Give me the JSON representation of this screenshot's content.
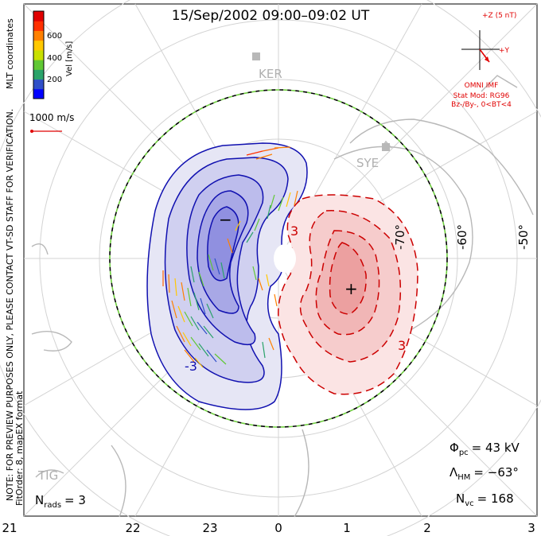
{
  "title": "15/Sep/2002 09:00–09:02 UT",
  "coordinates_label": "MLT coordinates",
  "colorbar": {
    "unit_label": "Vel [m/s]",
    "ticks": [
      "600",
      "400",
      "200"
    ],
    "colors": [
      "#0000ff",
      "#3050c8",
      "#2aa36a",
      "#60c834",
      "#c8e000",
      "#ffc800",
      "#ff8000",
      "#ff3000",
      "#e00000"
    ]
  },
  "reference_vector": "1000 m/s",
  "imf": {
    "z_label": "+Z (5 nT)",
    "y_label": "+Y",
    "source": "OMNI IMF",
    "model_line1": "Stat Mod: RG96",
    "model_line2": "Bz-/By-, 0<BT<4",
    "color": "#e00000"
  },
  "preview_note": "NOTE: FOR PREVIEW PURPOSES ONLY, PLEASE CONTACT VT-SD STAFF FOR VERIFICATION.",
  "fit_order": "FitOrder: 8, mapEX format",
  "station_labels": {
    "ker": "KER",
    "sye": "SYE",
    "tig": "TIG"
  },
  "lat_labels": [
    "-70°",
    "-60°",
    "-50°"
  ],
  "contour_labels": {
    "negative": "-3",
    "positive": "3"
  },
  "extrema": {
    "min": "−",
    "max": "+"
  },
  "mlt_labels": [
    "21",
    "22",
    "23",
    "0",
    "1",
    "2",
    "3"
  ],
  "stats": {
    "phi_pc": {
      "symbol": "Φ",
      "sub": "pc",
      "value": "= 43 kV"
    },
    "lambda_hm": {
      "symbol": "Λ",
      "sub": "HM",
      "value": "= −63°"
    },
    "n_vc": {
      "symbol": "N",
      "sub": "vc",
      "value": "= 168"
    },
    "n_rads": {
      "symbol": "N",
      "sub": "rads",
      "value": "= 3"
    }
  },
  "styles": {
    "negative_color": "#1010b0",
    "positive_color": "#cc0000",
    "hm_boundary_color": "#70d040"
  }
}
